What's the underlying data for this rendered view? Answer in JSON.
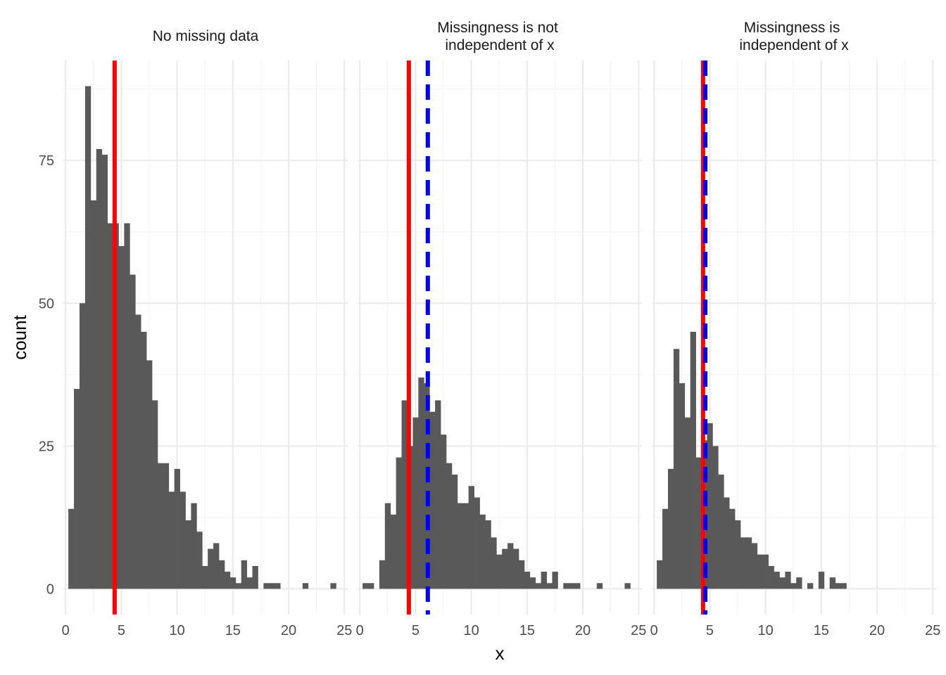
{
  "chart_data": {
    "type": "bar",
    "xlabel": "x",
    "ylabel": "count",
    "xlim": [
      -0.2,
      25.3
    ],
    "ylim": [
      -4.5,
      92.5
    ],
    "x_ticks": [
      0,
      5,
      10,
      15,
      20,
      25
    ],
    "y_ticks": [
      0,
      25,
      50,
      75
    ],
    "bin_width": 0.5,
    "bin_start": 0.25,
    "grid": true,
    "colors": {
      "bar": "#595959",
      "true_mean": "#ff0000",
      "observed_mean": "#0000ff"
    },
    "panels": [
      {
        "title": "No missing data",
        "true_mean": 4.4,
        "observed_mean": null,
        "counts": [
          14,
          35,
          50,
          88,
          68,
          77,
          76,
          64,
          64,
          60,
          64,
          55,
          48,
          45,
          40,
          33,
          22,
          22,
          17,
          21,
          17,
          12,
          15,
          10,
          4,
          7,
          8,
          5,
          3,
          2,
          1,
          5,
          2,
          4,
          0,
          1,
          1,
          1,
          0,
          0,
          0,
          0,
          1,
          0,
          0,
          0,
          0,
          1
        ]
      },
      {
        "title": "Missingness is not independent of x",
        "true_mean": 4.4,
        "observed_mean": 6.1,
        "counts": [
          1,
          1,
          0,
          5,
          15,
          13,
          23,
          33,
          25,
          30,
          37,
          36,
          31,
          33,
          27,
          22,
          20,
          15,
          15,
          18,
          16,
          13,
          12,
          9,
          6,
          7,
          8,
          7,
          5,
          3,
          2,
          1,
          3,
          1,
          3,
          0,
          1,
          1,
          1,
          0,
          0,
          0,
          1,
          0,
          0,
          0,
          0,
          1
        ]
      },
      {
        "title": "Missingness is independent of x",
        "true_mean": 4.4,
        "observed_mean": 4.6,
        "counts": [
          5,
          14,
          21,
          42,
          36,
          30,
          45,
          23,
          26,
          29,
          25,
          20,
          16,
          14,
          12,
          9,
          9,
          8,
          6,
          6,
          4,
          3,
          2,
          3,
          1,
          2,
          0,
          1,
          0,
          3,
          0,
          2,
          1,
          1,
          0,
          0,
          0,
          0,
          0,
          0,
          0,
          0,
          0,
          0,
          0,
          0,
          0,
          0
        ]
      }
    ]
  }
}
